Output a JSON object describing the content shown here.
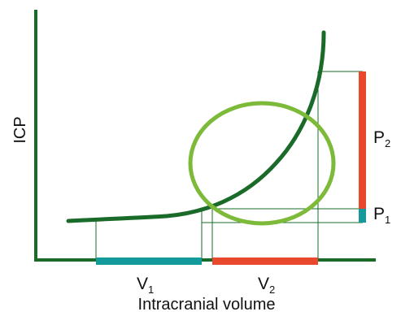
{
  "labels": {
    "y_axis": "ICP",
    "x_axis": "Intracranial volume",
    "v1": {
      "main": "V",
      "sub": "1"
    },
    "v2": {
      "main": "V",
      "sub": "2"
    },
    "p1": {
      "main": "P",
      "sub": "1"
    },
    "p2": {
      "main": "P",
      "sub": "2"
    }
  },
  "colors": {
    "axis": "#1a6b2a",
    "curve": "#1a6b2a",
    "ellipse": "#7dba3a",
    "teal": "#139a9a",
    "red": "#e8482c",
    "guide": "#1a6b2a",
    "text": "#111111"
  }
}
